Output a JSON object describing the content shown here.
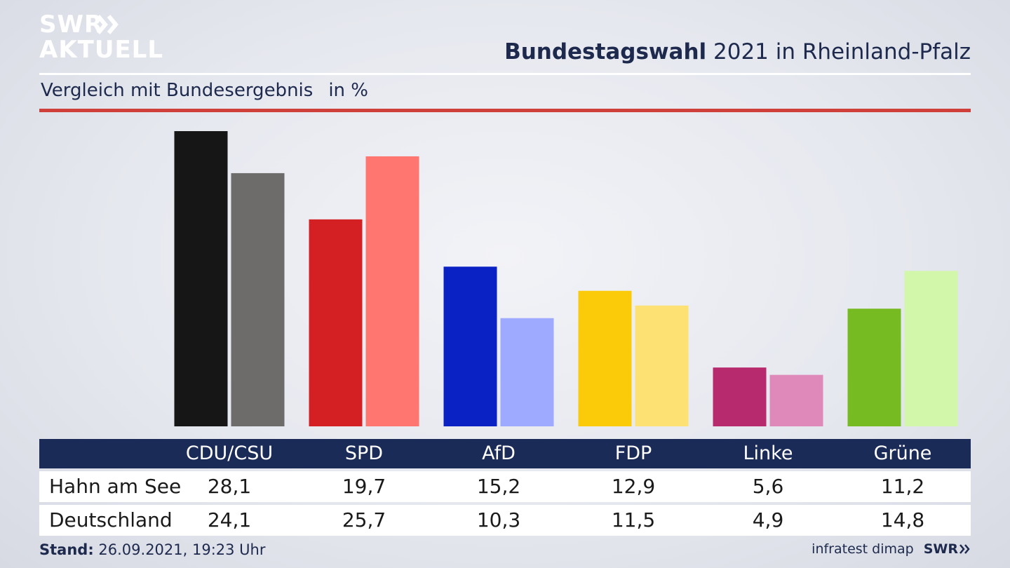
{
  "logo": {
    "line1": "SWR",
    "line2": "AKTUELL"
  },
  "header": {
    "title_bold": "Bundestagswahl",
    "title_rest": " 2021 in Rheinland-Pfalz",
    "subtitle": "Vergleich mit Bundesergebnis",
    "unit": "in %"
  },
  "colors": {
    "title": "#1d2a4d",
    "rule_red": "#d0403a",
    "table_header": "#1b2b58"
  },
  "chart_data": {
    "type": "bar",
    "title": "Bundestagswahl 2021 in Rheinland-Pfalz",
    "subtitle": "Vergleich mit Bundesergebnis",
    "ylabel": "in %",
    "ylim": [
      0,
      28.1
    ],
    "grid": false,
    "categories": [
      "CDU/CSU",
      "SPD",
      "AfD",
      "FDP",
      "Linke",
      "Grüne"
    ],
    "series": [
      {
        "name": "Hahn am See",
        "values": [
          28.1,
          19.7,
          15.2,
          12.9,
          5.6,
          11.2
        ],
        "labels": [
          "28,1",
          "19,7",
          "15,2",
          "12,9",
          "5,6",
          "11,2"
        ],
        "colors": [
          "#161616",
          "#d42023",
          "#0a21c4",
          "#fbcb0a",
          "#b72a6d",
          "#76bb22"
        ]
      },
      {
        "name": "Deutschland",
        "values": [
          24.1,
          25.7,
          10.3,
          11.5,
          4.9,
          14.8
        ],
        "labels": [
          "24,1",
          "25,7",
          "10,3",
          "11,5",
          "4,9",
          "14,8"
        ],
        "colors": [
          "#6e6c6a",
          "#ff756f",
          "#9daaff",
          "#fde172",
          "#df89bb",
          "#d2f7aa"
        ]
      }
    ]
  },
  "footer": {
    "stand_label": "Stand:",
    "stand_value": " 26.09.2021, 19:23 Uhr",
    "source": "infratest dimap",
    "brand": "SWR"
  }
}
